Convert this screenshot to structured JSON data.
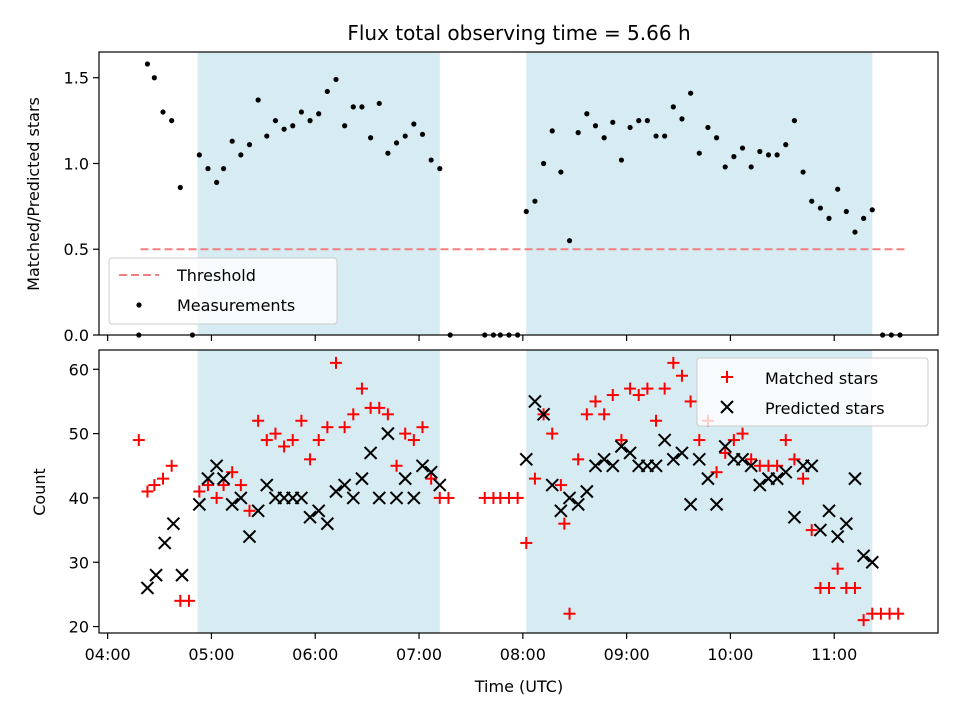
{
  "chart_data": [
    {
      "type": "scatter",
      "title": "Flux total observing time = 5.66 h",
      "ylabel": "Matched/Predicted stars",
      "xlabel": "",
      "xlim": [
        "04:00",
        "12:00"
      ],
      "ylim": [
        0,
        1.65
      ],
      "yticks": [
        0.0,
        0.5,
        1.0,
        1.5
      ],
      "ytick_labels": [
        "0.0",
        "0.5",
        "1.0",
        "1.5"
      ],
      "threshold": {
        "name": "Threshold",
        "y": 0.5,
        "x_start": "04:19",
        "x_end": "11:42",
        "color": "#f08080"
      },
      "shaded_spans": [
        [
          "04:52",
          "07:12"
        ],
        [
          "08:02",
          "11:22"
        ]
      ],
      "legend": {
        "position": "lower-left",
        "entries": [
          "Threshold",
          "Measurements"
        ]
      },
      "series": [
        {
          "name": "Measurements",
          "color": "#000000",
          "points": [
            [
              "04:18",
              0.0
            ],
            [
              "04:23",
              1.58
            ],
            [
              "04:27",
              1.5
            ],
            [
              "04:32",
              1.3
            ],
            [
              "04:37",
              1.25
            ],
            [
              "04:42",
              0.86
            ],
            [
              "04:49",
              0.0
            ],
            [
              "04:53",
              1.05
            ],
            [
              "04:58",
              0.97
            ],
            [
              "05:03",
              0.89
            ],
            [
              "05:07",
              0.97
            ],
            [
              "05:12",
              1.13
            ],
            [
              "05:17",
              1.05
            ],
            [
              "05:22",
              1.11
            ],
            [
              "05:27",
              1.37
            ],
            [
              "05:32",
              1.16
            ],
            [
              "05:37",
              1.25
            ],
            [
              "05:42",
              1.2
            ],
            [
              "05:47",
              1.22
            ],
            [
              "05:52",
              1.3
            ],
            [
              "05:57",
              1.25
            ],
            [
              "06:02",
              1.29
            ],
            [
              "06:07",
              1.42
            ],
            [
              "06:12",
              1.49
            ],
            [
              "06:17",
              1.22
            ],
            [
              "06:22",
              1.33
            ],
            [
              "06:27",
              1.33
            ],
            [
              "06:32",
              1.15
            ],
            [
              "06:37",
              1.35
            ],
            [
              "06:42",
              1.06
            ],
            [
              "06:47",
              1.12
            ],
            [
              "06:52",
              1.16
            ],
            [
              "06:57",
              1.23
            ],
            [
              "07:02",
              1.17
            ],
            [
              "07:07",
              1.02
            ],
            [
              "07:12",
              0.97
            ],
            [
              "07:18",
              0.0
            ],
            [
              "07:38",
              0.0
            ],
            [
              "07:43",
              0.0
            ],
            [
              "07:47",
              0.0
            ],
            [
              "07:52",
              0.0
            ],
            [
              "07:57",
              0.0
            ],
            [
              "08:02",
              0.72
            ],
            [
              "08:07",
              0.78
            ],
            [
              "08:12",
              1.0
            ],
            [
              "08:17",
              1.19
            ],
            [
              "08:22",
              0.95
            ],
            [
              "08:27",
              0.55
            ],
            [
              "08:32",
              1.18
            ],
            [
              "08:37",
              1.29
            ],
            [
              "08:42",
              1.22
            ],
            [
              "08:47",
              1.15
            ],
            [
              "08:52",
              1.24
            ],
            [
              "08:57",
              1.02
            ],
            [
              "09:02",
              1.21
            ],
            [
              "09:07",
              1.25
            ],
            [
              "09:12",
              1.25
            ],
            [
              "09:17",
              1.16
            ],
            [
              "09:22",
              1.16
            ],
            [
              "09:27",
              1.33
            ],
            [
              "09:32",
              1.26
            ],
            [
              "09:37",
              1.41
            ],
            [
              "09:42",
              1.06
            ],
            [
              "09:47",
              1.21
            ],
            [
              "09:52",
              1.15
            ],
            [
              "09:57",
              0.98
            ],
            [
              "10:02",
              1.04
            ],
            [
              "10:07",
              1.09
            ],
            [
              "10:12",
              0.98
            ],
            [
              "10:17",
              1.07
            ],
            [
              "10:22",
              1.05
            ],
            [
              "10:27",
              1.05
            ],
            [
              "10:32",
              1.11
            ],
            [
              "10:37",
              1.25
            ],
            [
              "10:42",
              0.95
            ],
            [
              "10:47",
              0.78
            ],
            [
              "10:52",
              0.74
            ],
            [
              "10:57",
              0.68
            ],
            [
              "11:02",
              0.85
            ],
            [
              "11:07",
              0.72
            ],
            [
              "11:12",
              0.6
            ],
            [
              "11:17",
              0.68
            ],
            [
              "11:22",
              0.73
            ],
            [
              "11:28",
              0.0
            ],
            [
              "11:33",
              0.0
            ],
            [
              "11:38",
              0.0
            ]
          ]
        }
      ]
    },
    {
      "type": "scatter",
      "title": "",
      "ylabel": "Count",
      "xlabel": "Time (UTC)",
      "xlim": [
        "04:00",
        "12:00"
      ],
      "ylim": [
        19,
        63
      ],
      "yticks": [
        20,
        30,
        40,
        50,
        60
      ],
      "ytick_labels": [
        "20",
        "30",
        "40",
        "50",
        "60"
      ],
      "xticks": [
        "04:00",
        "05:00",
        "06:00",
        "07:00",
        "08:00",
        "09:00",
        "10:00",
        "11:00"
      ],
      "shaded_spans": [
        [
          "04:52",
          "07:12"
        ],
        [
          "08:02",
          "11:22"
        ]
      ],
      "legend": {
        "position": "upper-right",
        "entries": [
          "Matched stars",
          "Predicted stars"
        ]
      },
      "series": [
        {
          "name": "Matched stars",
          "marker": "plus",
          "color": "#ff0000",
          "points": [
            [
              "04:18",
              49
            ],
            [
              "04:23",
              41
            ],
            [
              "04:27",
              42
            ],
            [
              "04:32",
              43
            ],
            [
              "04:37",
              45
            ],
            [
              "04:42",
              24
            ],
            [
              "04:47",
              24
            ],
            [
              "04:53",
              41
            ],
            [
              "04:58",
              42
            ],
            [
              "05:03",
              40
            ],
            [
              "05:07",
              42
            ],
            [
              "05:12",
              44
            ],
            [
              "05:17",
              42
            ],
            [
              "05:22",
              38
            ],
            [
              "05:27",
              52
            ],
            [
              "05:32",
              49
            ],
            [
              "05:37",
              50
            ],
            [
              "05:42",
              48
            ],
            [
              "05:47",
              49
            ],
            [
              "05:52",
              52
            ],
            [
              "05:57",
              46
            ],
            [
              "06:02",
              49
            ],
            [
              "06:07",
              51
            ],
            [
              "06:12",
              61
            ],
            [
              "06:17",
              51
            ],
            [
              "06:22",
              53
            ],
            [
              "06:27",
              57
            ],
            [
              "06:32",
              54
            ],
            [
              "06:37",
              54
            ],
            [
              "06:42",
              53
            ],
            [
              "06:47",
              45
            ],
            [
              "06:52",
              50
            ],
            [
              "06:57",
              49
            ],
            [
              "07:02",
              51
            ],
            [
              "07:07",
              43
            ],
            [
              "07:12",
              40
            ],
            [
              "07:17",
              40
            ],
            [
              "07:38",
              40
            ],
            [
              "07:43",
              40
            ],
            [
              "07:47",
              40
            ],
            [
              "07:52",
              40
            ],
            [
              "07:57",
              40
            ],
            [
              "08:02",
              33
            ],
            [
              "08:07",
              43
            ],
            [
              "08:12",
              53
            ],
            [
              "08:17",
              50
            ],
            [
              "08:22",
              42
            ],
            [
              "08:24",
              36
            ],
            [
              "08:27",
              22
            ],
            [
              "08:32",
              46
            ],
            [
              "08:37",
              53
            ],
            [
              "08:42",
              55
            ],
            [
              "08:47",
              53
            ],
            [
              "08:52",
              56
            ],
            [
              "08:57",
              49
            ],
            [
              "09:02",
              57
            ],
            [
              "09:07",
              56
            ],
            [
              "09:12",
              57
            ],
            [
              "09:17",
              52
            ],
            [
              "09:22",
              57
            ],
            [
              "09:27",
              61
            ],
            [
              "09:32",
              59
            ],
            [
              "09:37",
              55
            ],
            [
              "09:42",
              49
            ],
            [
              "09:47",
              52
            ],
            [
              "09:52",
              44
            ],
            [
              "09:57",
              47
            ],
            [
              "10:02",
              49
            ],
            [
              "10:07",
              50
            ],
            [
              "10:12",
              46
            ],
            [
              "10:17",
              45
            ],
            [
              "10:22",
              45
            ],
            [
              "10:27",
              45
            ],
            [
              "10:32",
              49
            ],
            [
              "10:37",
              46
            ],
            [
              "10:42",
              43
            ],
            [
              "10:47",
              35
            ],
            [
              "10:52",
              26
            ],
            [
              "10:57",
              26
            ],
            [
              "11:02",
              29
            ],
            [
              "11:07",
              26
            ],
            [
              "11:12",
              26
            ],
            [
              "11:17",
              21
            ],
            [
              "11:22",
              22
            ],
            [
              "11:27",
              22
            ],
            [
              "11:32",
              22
            ],
            [
              "11:37",
              22
            ]
          ]
        },
        {
          "name": "Predicted stars",
          "marker": "x",
          "color": "#000000",
          "points": [
            [
              "04:23",
              26
            ],
            [
              "04:28",
              28
            ],
            [
              "04:33",
              33
            ],
            [
              "04:38",
              36
            ],
            [
              "04:43",
              28
            ],
            [
              "04:53",
              39
            ],
            [
              "04:58",
              43
            ],
            [
              "05:03",
              45
            ],
            [
              "05:07",
              43
            ],
            [
              "05:12",
              39
            ],
            [
              "05:17",
              40
            ],
            [
              "05:22",
              34
            ],
            [
              "05:27",
              38
            ],
            [
              "05:32",
              42
            ],
            [
              "05:37",
              40
            ],
            [
              "05:42",
              40
            ],
            [
              "05:47",
              40
            ],
            [
              "05:52",
              40
            ],
            [
              "05:57",
              37
            ],
            [
              "06:02",
              38
            ],
            [
              "06:07",
              36
            ],
            [
              "06:12",
              41
            ],
            [
              "06:17",
              42
            ],
            [
              "06:22",
              40
            ],
            [
              "06:27",
              43
            ],
            [
              "06:32",
              47
            ],
            [
              "06:37",
              40
            ],
            [
              "06:42",
              50
            ],
            [
              "06:47",
              40
            ],
            [
              "06:52",
              43
            ],
            [
              "06:57",
              40
            ],
            [
              "07:02",
              45
            ],
            [
              "07:07",
              44
            ],
            [
              "07:12",
              42
            ],
            [
              "08:02",
              46
            ],
            [
              "08:07",
              55
            ],
            [
              "08:12",
              53
            ],
            [
              "08:17",
              42
            ],
            [
              "08:22",
              38
            ],
            [
              "08:27",
              40
            ],
            [
              "08:32",
              39
            ],
            [
              "08:37",
              41
            ],
            [
              "08:42",
              45
            ],
            [
              "08:47",
              46
            ],
            [
              "08:52",
              45
            ],
            [
              "08:57",
              48
            ],
            [
              "09:02",
              47
            ],
            [
              "09:07",
              45
            ],
            [
              "09:12",
              45
            ],
            [
              "09:17",
              45
            ],
            [
              "09:22",
              49
            ],
            [
              "09:27",
              46
            ],
            [
              "09:32",
              47
            ],
            [
              "09:37",
              39
            ],
            [
              "09:42",
              46
            ],
            [
              "09:47",
              43
            ],
            [
              "09:52",
              39
            ],
            [
              "09:57",
              48
            ],
            [
              "10:02",
              46
            ],
            [
              "10:07",
              46
            ],
            [
              "10:12",
              45
            ],
            [
              "10:17",
              42
            ],
            [
              "10:22",
              43
            ],
            [
              "10:27",
              43
            ],
            [
              "10:32",
              44
            ],
            [
              "10:37",
              37
            ],
            [
              "10:42",
              45
            ],
            [
              "10:47",
              45
            ],
            [
              "10:52",
              35
            ],
            [
              "10:57",
              38
            ],
            [
              "11:02",
              34
            ],
            [
              "11:07",
              36
            ],
            [
              "11:12",
              43
            ],
            [
              "11:17",
              31
            ],
            [
              "11:22",
              30
            ]
          ]
        }
      ]
    }
  ]
}
